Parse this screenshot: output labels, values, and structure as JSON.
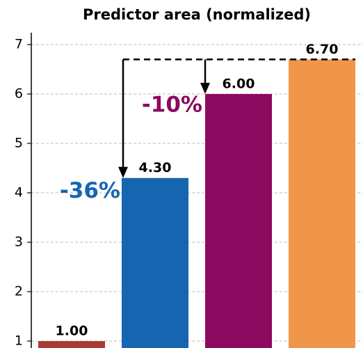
{
  "chart_data": {
    "type": "bar",
    "title": "Predictor area (normalized)",
    "values": [
      1.0,
      4.3,
      6.0,
      6.7
    ],
    "value_labels": [
      "1.00",
      "4.30",
      "6.00",
      "6.70"
    ],
    "colors": [
      "#a93a33",
      "#1565b0",
      "#8c0a5f",
      "#f0964a"
    ],
    "ylim": [
      0.86,
      7.24
    ],
    "yticks": [
      1,
      2,
      3,
      4,
      5,
      6,
      7
    ],
    "grid": true,
    "annotations": [
      {
        "text": "-36%",
        "color": "#1565b0"
      },
      {
        "text": "-10%",
        "color": "#8c0a5f"
      }
    ]
  }
}
